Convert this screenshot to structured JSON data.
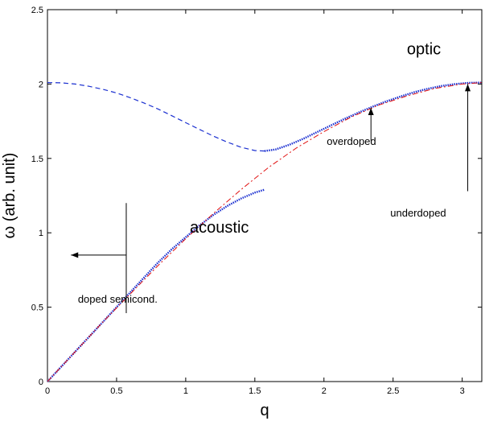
{
  "chart_data": {
    "type": "line",
    "xlabel": "q",
    "ylabel": "ω (arb. unit)",
    "xlim": [
      0,
      3.1416
    ],
    "ylim": [
      0,
      2.5
    ],
    "x_ticks": [
      "0",
      "0.5",
      "1",
      "1.5",
      "2",
      "2.5",
      "3"
    ],
    "y_ticks": [
      "0",
      "0.5",
      "1",
      "1.5",
      "2",
      "2.5"
    ],
    "grid": false,
    "colors": {
      "blue": "#1a2fd0",
      "red": "#e01010",
      "black": "#000000"
    },
    "series": [
      {
        "style": "blue-dashed",
        "x": [
          0,
          0.1,
          0.2,
          0.3,
          0.4,
          0.5,
          0.6,
          0.7,
          0.8,
          0.9,
          1.0,
          1.1,
          1.2,
          1.3,
          1.4,
          1.5,
          1.57
        ],
        "y": [
          2.01,
          2.008,
          2.0,
          1.985,
          1.965,
          1.94,
          1.908,
          1.872,
          1.832,
          1.787,
          1.74,
          1.695,
          1.65,
          1.61,
          1.575,
          1.553,
          1.55
        ]
      },
      {
        "style": "blue-dotted",
        "x": [
          1.57,
          1.65,
          1.75,
          1.85,
          1.95,
          2.05,
          2.15,
          2.25,
          2.35,
          2.45,
          2.55,
          2.65,
          2.75,
          2.85,
          2.95,
          3.05,
          3.1416
        ],
        "y": [
          1.55,
          1.56,
          1.592,
          1.632,
          1.677,
          1.722,
          1.766,
          1.808,
          1.847,
          1.883,
          1.915,
          1.944,
          1.968,
          1.987,
          2.0,
          2.008,
          2.01
        ]
      },
      {
        "style": "blue-dotted",
        "x": [
          0,
          0.1,
          0.2,
          0.3,
          0.4,
          0.5,
          0.6,
          0.7,
          0.8,
          0.9,
          1.0,
          1.1,
          1.2,
          1.3,
          1.4,
          1.5,
          1.57
        ],
        "y": [
          0,
          0.1,
          0.2,
          0.3,
          0.4,
          0.5,
          0.6,
          0.7,
          0.8,
          0.89,
          0.97,
          1.05,
          1.12,
          1.18,
          1.23,
          1.27,
          1.29
        ]
      },
      {
        "style": "red-dashdot",
        "x": [
          0,
          0.2,
          0.4,
          0.6,
          0.8,
          1.0,
          1.2,
          1.4,
          1.6,
          1.8,
          2.0,
          2.2,
          2.4,
          2.6,
          2.8,
          3.0,
          3.1416
        ],
        "y": [
          0,
          0.2,
          0.4,
          0.59,
          0.78,
          0.96,
          1.13,
          1.29,
          1.44,
          1.57,
          1.68,
          1.78,
          1.86,
          1.92,
          1.97,
          2.0,
          2.01
        ]
      }
    ],
    "annotations": [
      {
        "text": "optic",
        "x": 2.6,
        "y": 2.2,
        "size": "large"
      },
      {
        "text": "acoustic",
        "x": 1.03,
        "y": 1.0,
        "size": "large"
      },
      {
        "text": "overdoped",
        "x": 2.02,
        "y": 1.59,
        "size": "small"
      },
      {
        "text": "underdoped",
        "x": 2.48,
        "y": 1.11,
        "size": "small"
      },
      {
        "text": "doped semicond.",
        "x": 0.22,
        "y": 0.53,
        "size": "small"
      }
    ],
    "arrows": [
      {
        "from": [
          2.34,
          1.62
        ],
        "to": [
          2.34,
          1.84
        ]
      },
      {
        "from": [
          3.04,
          1.28
        ],
        "to": [
          3.04,
          2.0
        ]
      },
      {
        "from": [
          0.57,
          0.85
        ],
        "to": [
          0.17,
          0.85
        ]
      }
    ],
    "marker_line": {
      "x": 0.57,
      "y": [
        0.46,
        1.2
      ]
    }
  }
}
